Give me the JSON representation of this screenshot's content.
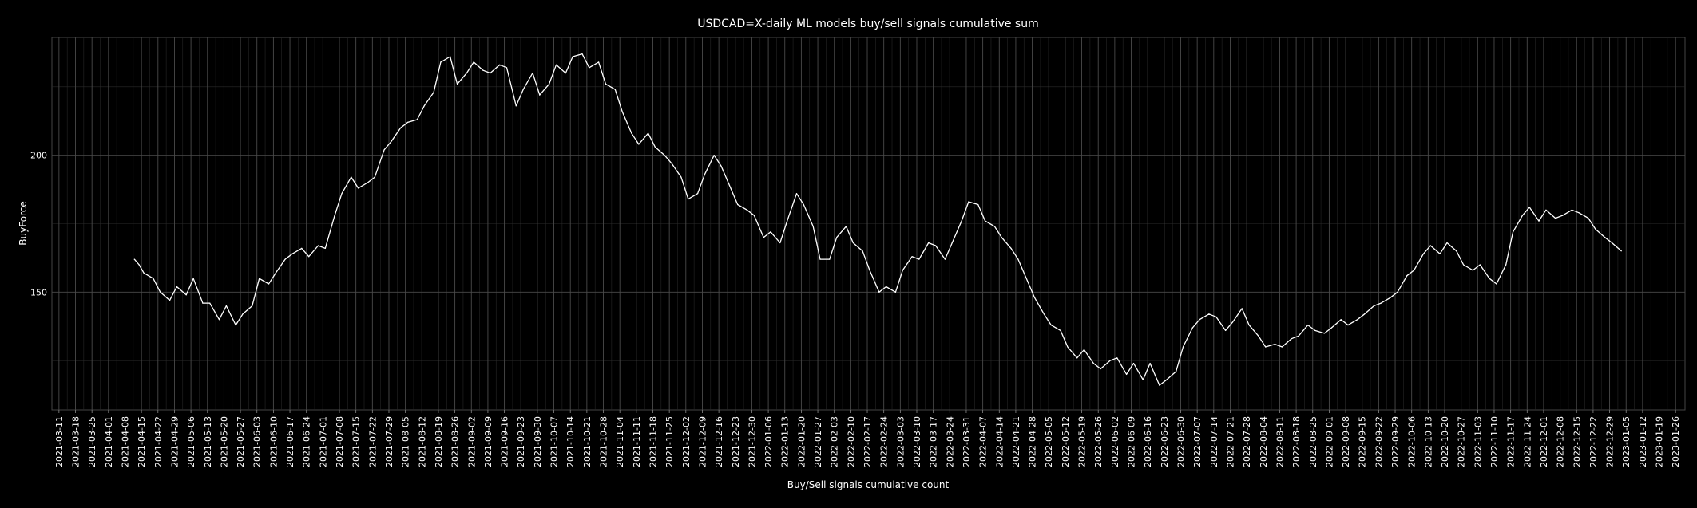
{
  "chart_data": {
    "type": "line",
    "title": "USDCAD=X-daily ML models buy/sell signals cumulative sum",
    "xlabel": "Buy/Sell signals cumulative count",
    "ylabel": "BuyForce",
    "x_start": "2021-03-08",
    "x_end": "2023-01-30",
    "ylim": [
      107,
      243
    ],
    "yticks": [
      150,
      200
    ],
    "grid": true,
    "xtick_labels": [
      "2021-03-11",
      "2021-03-18",
      "2021-03-25",
      "2021-04-01",
      "2021-04-08",
      "2021-04-15",
      "2021-04-22",
      "2021-04-29",
      "2021-05-06",
      "2021-05-13",
      "2021-05-20",
      "2021-05-27",
      "2021-06-03",
      "2021-06-10",
      "2021-06-17",
      "2021-06-24",
      "2021-07-01",
      "2021-07-08",
      "2021-07-15",
      "2021-07-22",
      "2021-07-29",
      "2021-08-05",
      "2021-08-12",
      "2021-08-19",
      "2021-08-26",
      "2021-09-02",
      "2021-09-09",
      "2021-09-16",
      "2021-09-23",
      "2021-09-30",
      "2021-10-07",
      "2021-10-14",
      "2021-10-21",
      "2021-10-28",
      "2021-11-04",
      "2021-11-11",
      "2021-11-18",
      "2021-11-25",
      "2021-12-02",
      "2021-12-09",
      "2021-12-16",
      "2021-12-23",
      "2021-12-30",
      "2022-01-06",
      "2022-01-13",
      "2022-01-20",
      "2022-01-27",
      "2022-02-03",
      "2022-02-10",
      "2022-02-17",
      "2022-02-24",
      "2022-03-03",
      "2022-03-10",
      "2022-03-17",
      "2022-03-24",
      "2022-03-31",
      "2022-04-07",
      "2022-04-14",
      "2022-04-21",
      "2022-04-28",
      "2022-05-05",
      "2022-05-12",
      "2022-05-19",
      "2022-05-26",
      "2022-06-02",
      "2022-06-09",
      "2022-06-16",
      "2022-06-23",
      "2022-06-30",
      "2022-07-07",
      "2022-07-14",
      "2022-07-21",
      "2022-07-28",
      "2022-08-04",
      "2022-08-11",
      "2022-08-18",
      "2022-08-25",
      "2022-09-01",
      "2022-09-08",
      "2022-09-15",
      "2022-09-22",
      "2022-09-29",
      "2022-10-06",
      "2022-10-13",
      "2022-10-20",
      "2022-10-27",
      "2022-11-03",
      "2022-11-10",
      "2022-11-17",
      "2022-11-24",
      "2022-12-01",
      "2022-12-08",
      "2022-12-15",
      "2022-12-22",
      "2022-12-29",
      "2023-01-05",
      "2023-01-12",
      "2023-01-19",
      "2023-01-26"
    ],
    "series": [
      {
        "color": "#ffffff",
        "points": [
          [
            "2021-04-12",
            162
          ],
          [
            "2021-04-14",
            160
          ],
          [
            "2021-04-16",
            157
          ],
          [
            "2021-04-20",
            155
          ],
          [
            "2021-04-23",
            150
          ],
          [
            "2021-04-27",
            147
          ],
          [
            "2021-04-30",
            152
          ],
          [
            "2021-05-04",
            149
          ],
          [
            "2021-05-07",
            155
          ],
          [
            "2021-05-11",
            146
          ],
          [
            "2021-05-14",
            146
          ],
          [
            "2021-05-18",
            140
          ],
          [
            "2021-05-21",
            145
          ],
          [
            "2021-05-25",
            138
          ],
          [
            "2021-05-28",
            142
          ],
          [
            "2021-06-01",
            145
          ],
          [
            "2021-06-04",
            155
          ],
          [
            "2021-06-08",
            153
          ],
          [
            "2021-06-11",
            157
          ],
          [
            "2021-06-15",
            162
          ],
          [
            "2021-06-18",
            164
          ],
          [
            "2021-06-22",
            166
          ],
          [
            "2021-06-25",
            163
          ],
          [
            "2021-06-29",
            167
          ],
          [
            "2021-07-02",
            166
          ],
          [
            "2021-07-06",
            178
          ],
          [
            "2021-07-09",
            186
          ],
          [
            "2021-07-13",
            192
          ],
          [
            "2021-07-16",
            188
          ],
          [
            "2021-07-20",
            190
          ],
          [
            "2021-07-23",
            192
          ],
          [
            "2021-07-27",
            202
          ],
          [
            "2021-07-30",
            205
          ],
          [
            "2021-08-03",
            210
          ],
          [
            "2021-08-06",
            212
          ],
          [
            "2021-08-10",
            213
          ],
          [
            "2021-08-13",
            218
          ],
          [
            "2021-08-17",
            223
          ],
          [
            "2021-08-20",
            234
          ],
          [
            "2021-08-24",
            236
          ],
          [
            "2021-08-27",
            226
          ],
          [
            "2021-08-31",
            230
          ],
          [
            "2021-09-03",
            234
          ],
          [
            "2021-09-07",
            231
          ],
          [
            "2021-09-10",
            230
          ],
          [
            "2021-09-14",
            233
          ],
          [
            "2021-09-17",
            232
          ],
          [
            "2021-09-21",
            218
          ],
          [
            "2021-09-24",
            224
          ],
          [
            "2021-09-28",
            230
          ],
          [
            "2021-10-01",
            222
          ],
          [
            "2021-10-05",
            226
          ],
          [
            "2021-10-08",
            233
          ],
          [
            "2021-10-12",
            230
          ],
          [
            "2021-10-15",
            236
          ],
          [
            "2021-10-19",
            237
          ],
          [
            "2021-10-22",
            232
          ],
          [
            "2021-10-26",
            234
          ],
          [
            "2021-10-29",
            226
          ],
          [
            "2021-11-02",
            224
          ],
          [
            "2021-11-05",
            216
          ],
          [
            "2021-11-09",
            208
          ],
          [
            "2021-11-12",
            204
          ],
          [
            "2021-11-16",
            208
          ],
          [
            "2021-11-19",
            203
          ],
          [
            "2021-11-23",
            200
          ],
          [
            "2021-11-26",
            197
          ],
          [
            "2021-11-30",
            192
          ],
          [
            "2021-12-03",
            184
          ],
          [
            "2021-12-07",
            186
          ],
          [
            "2021-12-10",
            193
          ],
          [
            "2021-12-14",
            200
          ],
          [
            "2021-12-17",
            196
          ],
          [
            "2021-12-21",
            188
          ],
          [
            "2021-12-24",
            182
          ],
          [
            "2021-12-28",
            180
          ],
          [
            "2021-12-31",
            178
          ],
          [
            "2022-01-04",
            170
          ],
          [
            "2022-01-07",
            172
          ],
          [
            "2022-01-11",
            168
          ],
          [
            "2022-01-14",
            176
          ],
          [
            "2022-01-18",
            186
          ],
          [
            "2022-01-21",
            182
          ],
          [
            "2022-01-25",
            174
          ],
          [
            "2022-01-28",
            162
          ],
          [
            "2022-02-01",
            162
          ],
          [
            "2022-02-04",
            170
          ],
          [
            "2022-02-08",
            174
          ],
          [
            "2022-02-11",
            168
          ],
          [
            "2022-02-15",
            165
          ],
          [
            "2022-02-18",
            158
          ],
          [
            "2022-02-22",
            150
          ],
          [
            "2022-02-25",
            152
          ],
          [
            "2022-03-01",
            150
          ],
          [
            "2022-03-04",
            158
          ],
          [
            "2022-03-08",
            163
          ],
          [
            "2022-03-11",
            162
          ],
          [
            "2022-03-15",
            168
          ],
          [
            "2022-03-18",
            167
          ],
          [
            "2022-03-22",
            162
          ],
          [
            "2022-03-25",
            168
          ],
          [
            "2022-03-29",
            176
          ],
          [
            "2022-04-01",
            183
          ],
          [
            "2022-04-05",
            182
          ],
          [
            "2022-04-08",
            176
          ],
          [
            "2022-04-12",
            174
          ],
          [
            "2022-04-15",
            170
          ],
          [
            "2022-04-19",
            166
          ],
          [
            "2022-04-22",
            162
          ],
          [
            "2022-04-26",
            154
          ],
          [
            "2022-04-29",
            148
          ],
          [
            "2022-05-03",
            142
          ],
          [
            "2022-05-06",
            138
          ],
          [
            "2022-05-10",
            136
          ],
          [
            "2022-05-13",
            130
          ],
          [
            "2022-05-17",
            126
          ],
          [
            "2022-05-20",
            129
          ],
          [
            "2022-05-24",
            124
          ],
          [
            "2022-05-27",
            122
          ],
          [
            "2022-05-31",
            125
          ],
          [
            "2022-06-03",
            126
          ],
          [
            "2022-06-07",
            120
          ],
          [
            "2022-06-10",
            124
          ],
          [
            "2022-06-14",
            118
          ],
          [
            "2022-06-17",
            124
          ],
          [
            "2022-06-21",
            116
          ],
          [
            "2022-06-24",
            118
          ],
          [
            "2022-06-28",
            121
          ],
          [
            "2022-07-01",
            130
          ],
          [
            "2022-07-05",
            137
          ],
          [
            "2022-07-08",
            140
          ],
          [
            "2022-07-12",
            142
          ],
          [
            "2022-07-15",
            141
          ],
          [
            "2022-07-19",
            136
          ],
          [
            "2022-07-22",
            139
          ],
          [
            "2022-07-26",
            144
          ],
          [
            "2022-07-29",
            138
          ],
          [
            "2022-08-02",
            134
          ],
          [
            "2022-08-05",
            130
          ],
          [
            "2022-08-09",
            131
          ],
          [
            "2022-08-12",
            130
          ],
          [
            "2022-08-16",
            133
          ],
          [
            "2022-08-19",
            134
          ],
          [
            "2022-08-23",
            138
          ],
          [
            "2022-08-26",
            136
          ],
          [
            "2022-08-30",
            135
          ],
          [
            "2022-09-02",
            137
          ],
          [
            "2022-09-06",
            140
          ],
          [
            "2022-09-09",
            138
          ],
          [
            "2022-09-13",
            140
          ],
          [
            "2022-09-16",
            142
          ],
          [
            "2022-09-20",
            145
          ],
          [
            "2022-09-23",
            146
          ],
          [
            "2022-09-27",
            148
          ],
          [
            "2022-09-30",
            150
          ],
          [
            "2022-10-04",
            156
          ],
          [
            "2022-10-07",
            158
          ],
          [
            "2022-10-11",
            164
          ],
          [
            "2022-10-14",
            167
          ],
          [
            "2022-10-18",
            164
          ],
          [
            "2022-10-21",
            168
          ],
          [
            "2022-10-25",
            165
          ],
          [
            "2022-10-28",
            160
          ],
          [
            "2022-11-01",
            158
          ],
          [
            "2022-11-04",
            160
          ],
          [
            "2022-11-08",
            155
          ],
          [
            "2022-11-11",
            153
          ],
          [
            "2022-11-15",
            160
          ],
          [
            "2022-11-18",
            172
          ],
          [
            "2022-11-22",
            178
          ],
          [
            "2022-11-25",
            181
          ],
          [
            "2022-11-29",
            176
          ],
          [
            "2022-12-02",
            180
          ],
          [
            "2022-12-06",
            177
          ],
          [
            "2022-12-09",
            178
          ],
          [
            "2022-12-13",
            180
          ],
          [
            "2022-12-16",
            179
          ],
          [
            "2022-12-20",
            177
          ],
          [
            "2022-12-23",
            173
          ],
          [
            "2022-12-27",
            170
          ],
          [
            "2022-12-30",
            168
          ],
          [
            "2023-01-03",
            165
          ]
        ]
      }
    ]
  }
}
